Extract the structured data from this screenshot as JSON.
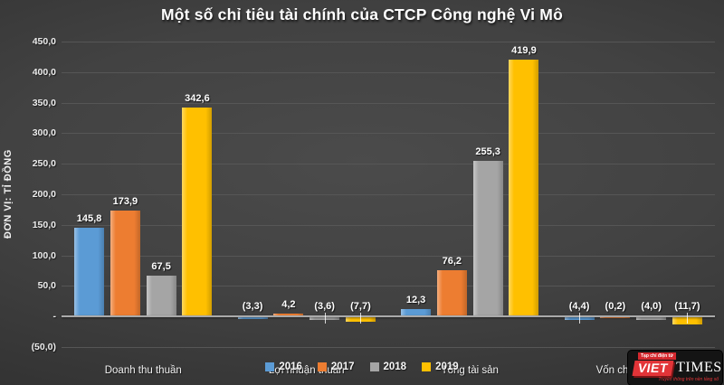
{
  "page": {
    "title": "Một số chỉ tiêu tài chính của CTCP Công nghệ Vi Mô"
  },
  "chart_data": {
    "type": "bar",
    "title": "Một số chỉ tiêu tài chính của CTCP Công nghệ Vi Mô",
    "xlabel": "",
    "ylabel": "ĐƠN VỊ: TỈ ĐỒNG",
    "ylim": [
      -50,
      450
    ],
    "grid": true,
    "legend_position": "bottom",
    "categories": [
      "Doanh thu thuần",
      "Lợi nhuận thuần",
      "Tổng tài sản",
      "Vốn chủ sở hữu"
    ],
    "series": [
      {
        "name": "2016",
        "color": "#5B9BD5",
        "values": [
          145.8,
          -3.3,
          12.3,
          -4.4
        ],
        "labels": [
          "145,8",
          "(3,3)",
          "12,3",
          "(4,4)"
        ]
      },
      {
        "name": "2017",
        "color": "#ED7D31",
        "values": [
          173.9,
          4.2,
          76.2,
          -0.2
        ],
        "labels": [
          "173,9",
          "4,2",
          "76,2",
          "(0,2)"
        ]
      },
      {
        "name": "2018",
        "color": "#A5A5A5",
        "values": [
          67.5,
          -3.6,
          255.3,
          -4.0
        ],
        "labels": [
          "67,5",
          "(3,6)",
          "255,3",
          "(4,0)"
        ]
      },
      {
        "name": "2019",
        "color": "#FFC000",
        "values": [
          342.6,
          -7.7,
          419.9,
          -11.7
        ],
        "labels": [
          "342,6",
          "(7,7)",
          "419,9",
          "(11,7)"
        ]
      }
    ],
    "leaders": [
      [
        false,
        false,
        false,
        true
      ],
      [
        false,
        false,
        false,
        false
      ],
      [
        false,
        true,
        false,
        false
      ],
      [
        false,
        true,
        false,
        true
      ]
    ],
    "y_ticks": [
      {
        "v": 450,
        "label": "450,0"
      },
      {
        "v": 400,
        "label": "400,0"
      },
      {
        "v": 350,
        "label": "350,0"
      },
      {
        "v": 300,
        "label": "300,0"
      },
      {
        "v": 250,
        "label": "250,0"
      },
      {
        "v": 200,
        "label": "200,0"
      },
      {
        "v": 150,
        "label": "150,0"
      },
      {
        "v": 100,
        "label": "100,0"
      },
      {
        "v": 50,
        "label": "50,0"
      },
      {
        "v": 0,
        "label": "-"
      },
      {
        "v": -50,
        "label": "(50,0)"
      }
    ]
  },
  "logo": {
    "chip": "Tạp chí điện tử",
    "brand_red": "VIET",
    "brand_serif": "TIMES",
    "tagline": "Truyền thông trên nền tảng số",
    "accent": "#e23438"
  }
}
